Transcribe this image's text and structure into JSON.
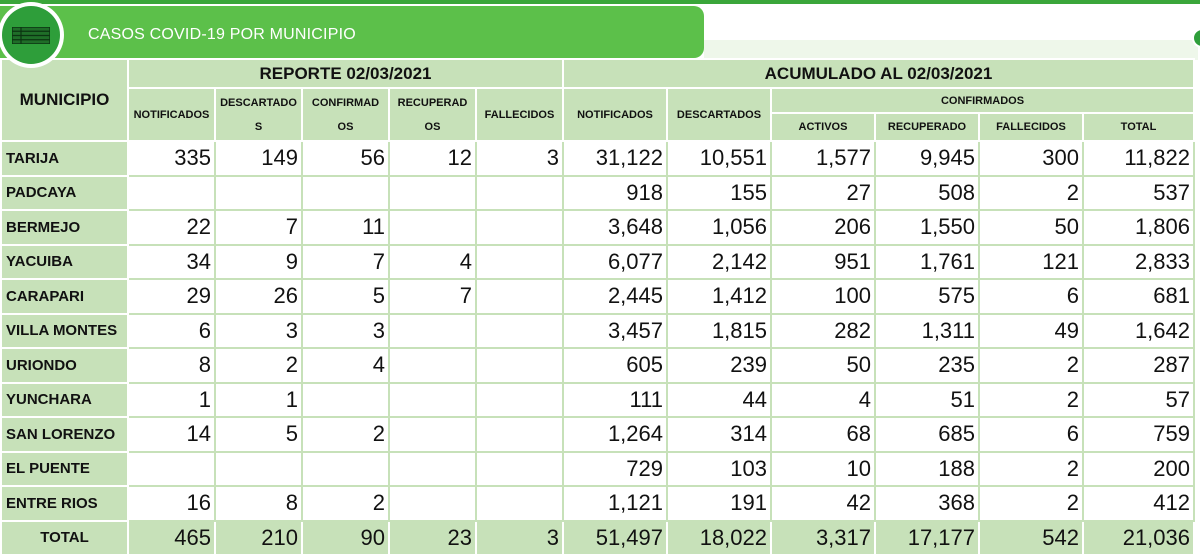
{
  "banner": {
    "title": "CASOS COVID-19 POR MUNICIPIO",
    "icon": "table-list-icon",
    "color": "#5cc04a"
  },
  "table": {
    "municipio_header": "MUNICIPIO",
    "reporte_header": "REPORTE 02/03/2021",
    "acumulado_header": "ACUMULADO AL 02/03/2021",
    "reporte_cols": [
      "NOTIFICADOS",
      "DESCARTADO S",
      "CONFIRMAD OS",
      "RECUPERAD OS",
      "FALLECIDOS"
    ],
    "acumulado_cols": [
      "NOTIFICADOS",
      "DESCARTADOS"
    ],
    "confirmados_header": "CONFIRMADOS",
    "confirmados_cols": [
      "ACTIVOS",
      "RECUPERADO",
      "FALLECIDOS",
      "TOTAL"
    ],
    "rows": [
      {
        "municipio": "TARIJA",
        "r": [
          "335",
          "149",
          "56",
          "12",
          "3"
        ],
        "a": [
          "31,122",
          "10,551",
          "1,577",
          "9,945",
          "300",
          "11,822"
        ]
      },
      {
        "municipio": "PADCAYA",
        "r": [
          "",
          "",
          "",
          "",
          ""
        ],
        "a": [
          "918",
          "155",
          "27",
          "508",
          "2",
          "537"
        ]
      },
      {
        "municipio": "BERMEJO",
        "r": [
          "22",
          "7",
          "11",
          "",
          ""
        ],
        "a": [
          "3,648",
          "1,056",
          "206",
          "1,550",
          "50",
          "1,806"
        ]
      },
      {
        "municipio": "YACUIBA",
        "r": [
          "34",
          "9",
          "7",
          "4",
          ""
        ],
        "a": [
          "6,077",
          "2,142",
          "951",
          "1,761",
          "121",
          "2,833"
        ]
      },
      {
        "municipio": "CARAPARI",
        "r": [
          "29",
          "26",
          "5",
          "7",
          ""
        ],
        "a": [
          "2,445",
          "1,412",
          "100",
          "575",
          "6",
          "681"
        ]
      },
      {
        "municipio": "VILLA MONTES",
        "r": [
          "6",
          "3",
          "3",
          "",
          ""
        ],
        "a": [
          "3,457",
          "1,815",
          "282",
          "1,311",
          "49",
          "1,642"
        ]
      },
      {
        "municipio": "URIONDO",
        "r": [
          "8",
          "2",
          "4",
          "",
          ""
        ],
        "a": [
          "605",
          "239",
          "50",
          "235",
          "2",
          "287"
        ]
      },
      {
        "municipio": "YUNCHARA",
        "r": [
          "1",
          "1",
          "",
          "",
          ""
        ],
        "a": [
          "111",
          "44",
          "4",
          "51",
          "2",
          "57"
        ]
      },
      {
        "municipio": "SAN LORENZO",
        "r": [
          "14",
          "5",
          "2",
          "",
          ""
        ],
        "a": [
          "1,264",
          "314",
          "68",
          "685",
          "6",
          "759"
        ]
      },
      {
        "municipio": "EL PUENTE",
        "r": [
          "",
          "",
          "",
          "",
          ""
        ],
        "a": [
          "729",
          "103",
          "10",
          "188",
          "2",
          "200"
        ]
      },
      {
        "municipio": "ENTRE RIOS",
        "r": [
          "16",
          "8",
          "2",
          "",
          ""
        ],
        "a": [
          "1,121",
          "191",
          "42",
          "368",
          "2",
          "412"
        ]
      }
    ],
    "total": {
      "municipio": "TOTAL",
      "r": [
        "465",
        "210",
        "90",
        "23",
        "3"
      ],
      "a": [
        "51,497",
        "18,022",
        "3,317",
        "17,177",
        "542",
        "21,036"
      ]
    }
  }
}
